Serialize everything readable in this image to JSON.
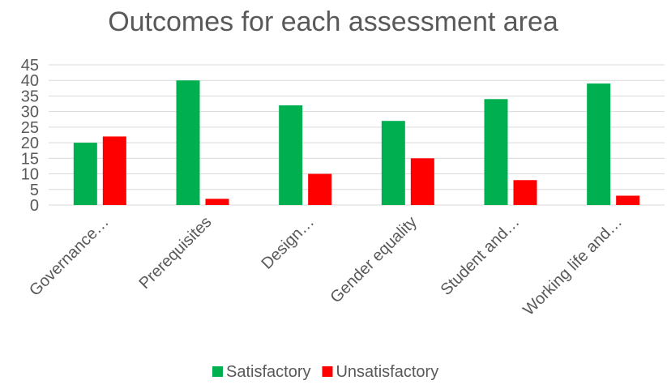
{
  "chart_data": {
    "type": "bar",
    "title": "Outcomes for each assessment area",
    "categories": [
      "Governance…",
      "Prerequisites",
      "Design…",
      "Gender equality",
      "Student and…",
      "Working life and…"
    ],
    "series": [
      {
        "name": "Satisfactory",
        "color": "#00b050",
        "values": [
          20,
          40,
          32,
          27,
          34,
          39
        ]
      },
      {
        "name": "Unsatisfactory",
        "color": "#ff0000",
        "values": [
          22,
          2,
          10,
          15,
          8,
          3
        ]
      }
    ],
    "yticks": [
      0,
      5,
      10,
      15,
      20,
      25,
      30,
      35,
      40,
      45
    ],
    "ylim": [
      0,
      45
    ],
    "xlabel": "",
    "ylabel": "",
    "grid": true,
    "legend": "bottom"
  }
}
